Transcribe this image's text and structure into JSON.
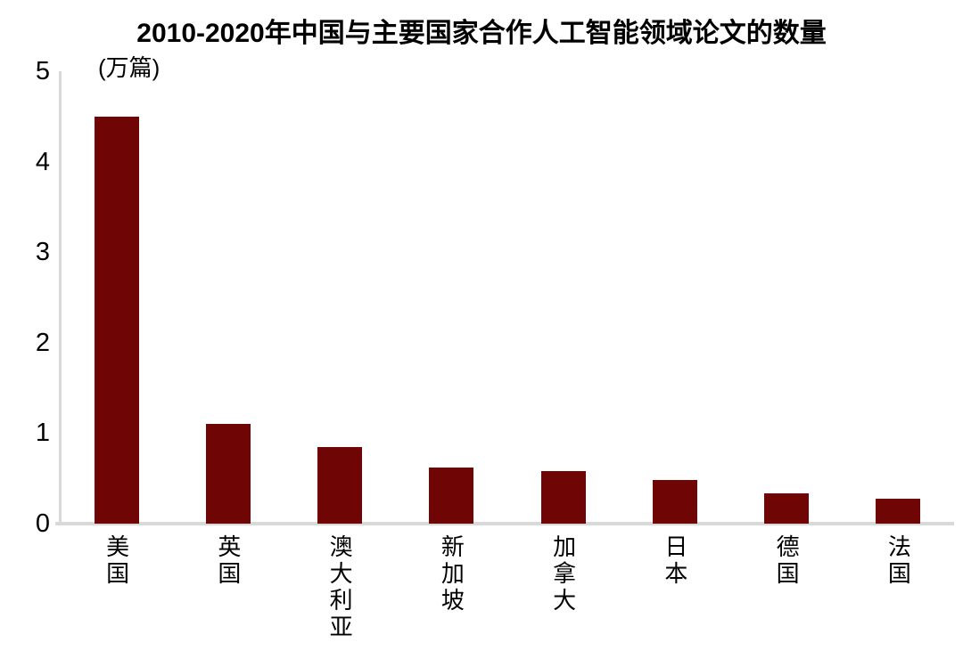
{
  "chart_data": {
    "type": "bar",
    "title": "2010-2020年中国与主要国家合作人工智能领域论文的数量",
    "unit_label": "(万篇)",
    "categories": [
      "美国",
      "英国",
      "澳大利亚",
      "新加坡",
      "加拿大",
      "日本",
      "德国",
      "法国"
    ],
    "values": [
      4.5,
      1.1,
      0.85,
      0.62,
      0.58,
      0.48,
      0.33,
      0.28
    ],
    "xlabel": "",
    "ylabel": "万篇",
    "ylim": [
      0,
      5
    ],
    "yticks": [
      0,
      1,
      2,
      3,
      4,
      5
    ],
    "grid": false,
    "legend": "none",
    "bar_color": "#6f0505",
    "axis_color": "#d9d9d9",
    "text_color": "#000000"
  }
}
